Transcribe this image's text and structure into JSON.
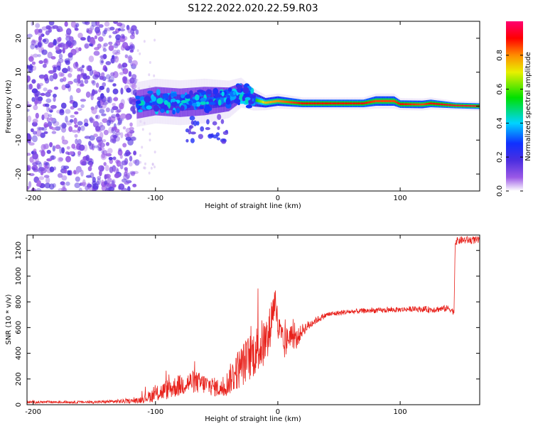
{
  "title": "S122.2022.020.22.59.R03",
  "chart_data": [
    {
      "type": "heatmap",
      "name": "spectrogram",
      "xlabel": "Height of straight line (km)",
      "ylabel": "Frequency (Hz)",
      "xlim": [
        -205,
        165
      ],
      "ylim": [
        -25,
        25
      ],
      "xticks": [
        -200,
        -100,
        0,
        100
      ],
      "yticks": [
        -20,
        -10,
        0,
        10,
        20
      ],
      "colorbar": {
        "label": "Normalized spectral amplitude",
        "range": [
          0,
          1
        ],
        "ticks": [
          0.0,
          0.2,
          0.4,
          0.6,
          0.8
        ],
        "colormap": [
          "#ffffff",
          "#7d2ed8",
          "#2222ff",
          "#00d4ff",
          "#00e000",
          "#f0f000",
          "#ff8c00",
          "#ff0000",
          "#ff0070"
        ]
      },
      "noise_region": {
        "x": [
          -205,
          -115
        ],
        "y": [
          -25,
          25
        ],
        "amplitude": 0.15
      },
      "signal_ridge": [
        {
          "x": -115,
          "y": 0.5,
          "width": 3.0,
          "amplitude": 0.25
        },
        {
          "x": -100,
          "y": 1.5,
          "width": 3.0,
          "amplitude": 0.3
        },
        {
          "x": -80,
          "y": 1.0,
          "width": 3.0,
          "amplitude": 0.3
        },
        {
          "x": -60,
          "y": 1.5,
          "width": 3.0,
          "amplitude": 0.3
        },
        {
          "x": -40,
          "y": 2.0,
          "width": 2.5,
          "amplitude": 0.35
        },
        {
          "x": -30,
          "y": 4.0,
          "width": 2.0,
          "amplitude": 0.4
        },
        {
          "x": -20,
          "y": 2.0,
          "width": 1.5,
          "amplitude": 0.5
        },
        {
          "x": -10,
          "y": 1.0,
          "width": 1.0,
          "amplitude": 0.75
        },
        {
          "x": 0,
          "y": 1.5,
          "width": 1.0,
          "amplitude": 0.8
        },
        {
          "x": 20,
          "y": 0.8,
          "width": 0.8,
          "amplitude": 0.9
        },
        {
          "x": 70,
          "y": 0.8,
          "width": 0.8,
          "amplitude": 0.9
        },
        {
          "x": 80,
          "y": 1.5,
          "width": 1.0,
          "amplitude": 0.85
        },
        {
          "x": 95,
          "y": 1.5,
          "width": 1.0,
          "amplitude": 0.85
        },
        {
          "x": 100,
          "y": 0.6,
          "width": 0.8,
          "amplitude": 0.9
        },
        {
          "x": 118,
          "y": 0.5,
          "width": 0.8,
          "amplitude": 0.85
        },
        {
          "x": 125,
          "y": 0.8,
          "width": 0.8,
          "amplitude": 0.9
        },
        {
          "x": 145,
          "y": 0.2,
          "width": 0.6,
          "amplitude": 0.95
        },
        {
          "x": 165,
          "y": 0.0,
          "width": 0.6,
          "amplitude": 0.95
        }
      ]
    },
    {
      "type": "line",
      "name": "snr",
      "xlabel": "Height of straight line (km)",
      "ylabel": "SNR (10 * v/v)",
      "xlim": [
        -205,
        165
      ],
      "ylim": [
        0,
        1320
      ],
      "xticks": [
        -200,
        -100,
        0,
        100
      ],
      "yticks": [
        0,
        200,
        400,
        600,
        800,
        1000,
        1200
      ],
      "color": "#e8221c",
      "series": [
        {
          "x": [
            -205,
            -150,
            -115,
            -100,
            -90,
            -70,
            -60,
            -45,
            -35,
            -25,
            -15,
            -8,
            -5,
            -2,
            0,
            5,
            10,
            15,
            20,
            30,
            40,
            55,
            70,
            90,
            110,
            125,
            140,
            144,
            145,
            150,
            165
          ],
          "y": [
            20,
            20,
            30,
            80,
            120,
            180,
            160,
            120,
            250,
            350,
            450,
            500,
            700,
            820,
            600,
            450,
            550,
            500,
            580,
            650,
            700,
            720,
            730,
            735,
            745,
            740,
            750,
            720,
            1270,
            1280,
            1280
          ],
          "noise": [
            10,
            10,
            20,
            60,
            80,
            90,
            80,
            70,
            150,
            180,
            200,
            200,
            150,
            120,
            150,
            120,
            100,
            80,
            50,
            30,
            20,
            20,
            20,
            20,
            20,
            25,
            25,
            25,
            30,
            30,
            30
          ]
        }
      ]
    }
  ]
}
